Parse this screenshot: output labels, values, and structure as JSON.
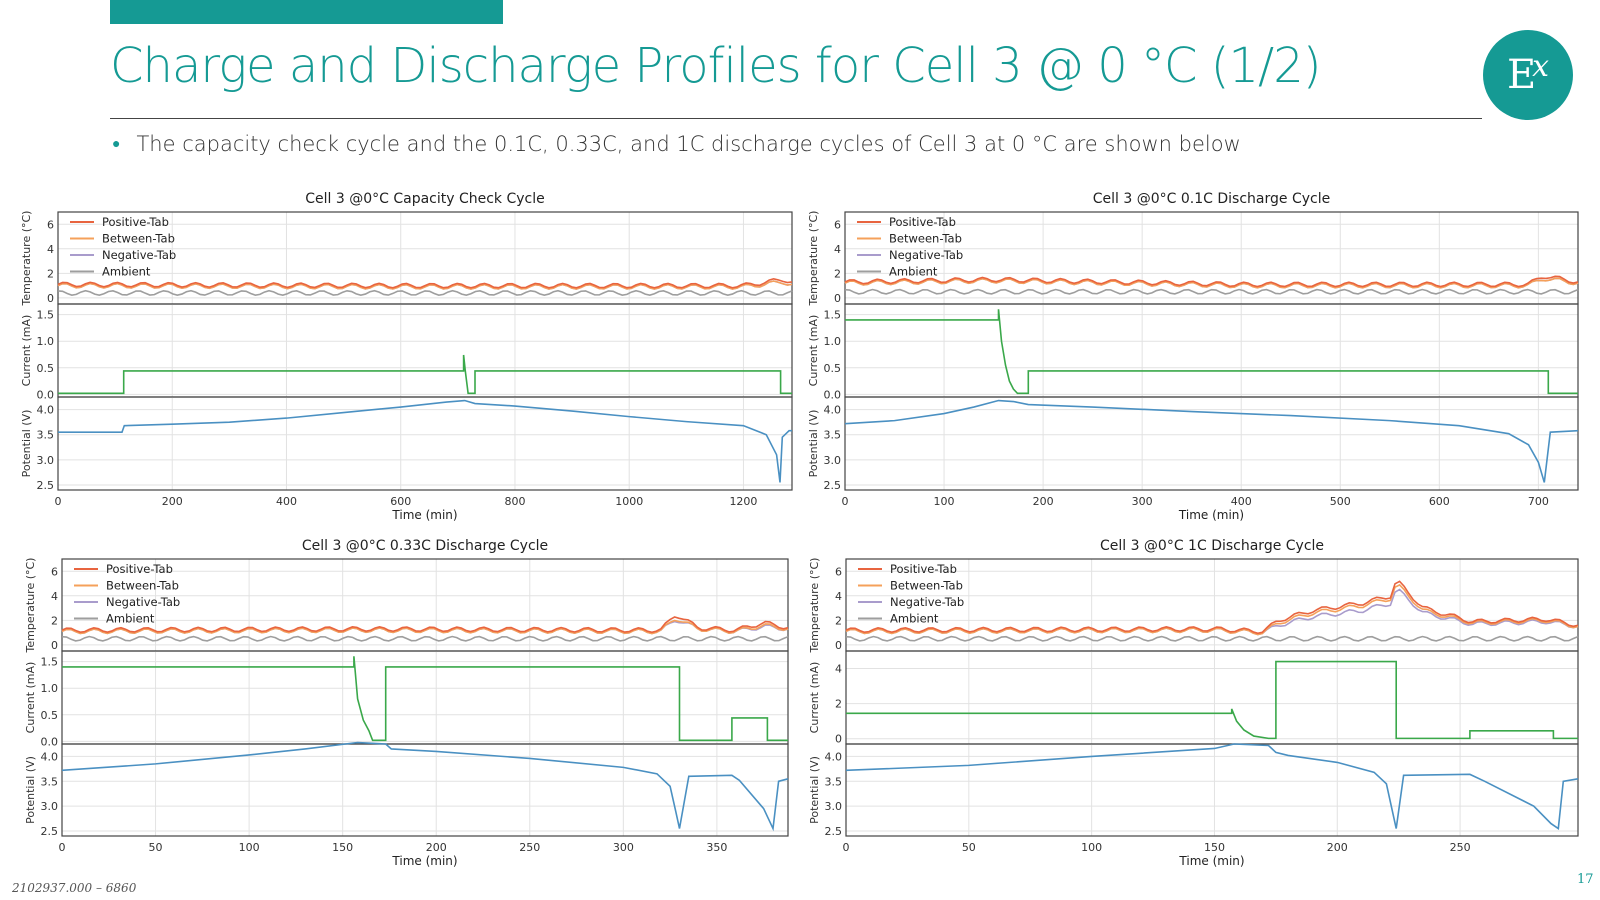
{
  "slide": {
    "title": "Charge and Discharge Profiles for Cell 3 @ 0 °C (1/2)",
    "bullet": "The capacity check cycle and the 0.1C, 0.33C, and 1C discharge cycles of Cell 3 at 0 °C are shown below",
    "logo_text": "E",
    "logo_sup": "x",
    "footer": "2102937.000 – 6860",
    "page_number": "17",
    "brand_color": "#159a94"
  },
  "legend_entries": [
    "Positive-Tab",
    "Between-Tab",
    "Negative-Tab",
    "Ambient"
  ],
  "series_colors": {
    "Positive-Tab": "#e8643f",
    "Between-Tab": "#f5a05a",
    "Negative-Tab": "#a99ccc",
    "Ambient": "#9e9e9e",
    "current": "#3aa84a",
    "potential": "#4a90c2"
  },
  "panel_labels": {
    "temperature": "Temperature (°C)",
    "current": "Current (mA)",
    "potential": "Potential (V)",
    "xlabel": "Time (min)"
  },
  "chart_data": [
    {
      "type": "line",
      "title": "Cell 3 @0°C Capacity Check Cycle",
      "xlabel": "Time (min)",
      "xlim": [
        0,
        1285
      ],
      "xticks": [
        0,
        200,
        400,
        600,
        800,
        1000,
        1200
      ],
      "temperature": {
        "ylabel": "Temperature (°C)",
        "ylim": [
          -0.5,
          7
        ],
        "yticks": [
          0,
          2,
          4,
          6
        ],
        "series": [
          {
            "name": "Positive-Tab",
            "x": [
              0,
              600,
              1200,
              1270,
              1285
            ],
            "y": [
              1.1,
              1.0,
              1.0,
              1.5,
              1.3
            ]
          },
          {
            "name": "Between-Tab",
            "x": [
              0,
              600,
              1200,
              1270,
              1285
            ],
            "y": [
              1.0,
              0.9,
              0.9,
              1.3,
              1.1
            ]
          },
          {
            "name": "Negative-Tab",
            "x": [
              0,
              600,
              1200,
              1270,
              1285
            ],
            "y": [
              1.0,
              0.9,
              0.9,
              1.3,
              1.1
            ]
          },
          {
            "name": "Ambient",
            "x": [
              0,
              1285
            ],
            "y": [
              0.4,
              0.4
            ]
          }
        ]
      },
      "current": {
        "ylabel": "Current (mA)",
        "ylim": [
          -0.05,
          1.7
        ],
        "yticks": [
          0.0,
          0.5,
          1.0,
          1.5
        ],
        "yticklabels": [
          "0.0",
          "0.5",
          "1.0",
          "1.5"
        ],
        "x": [
          0,
          115,
          115,
          710,
          710,
          713,
          718,
          730,
          730,
          1265,
          1265,
          1285
        ],
        "y": [
          0.02,
          0.02,
          0.44,
          0.44,
          0.74,
          0.44,
          0.02,
          0.02,
          0.44,
          0.44,
          0.02,
          0.02
        ]
      },
      "potential": {
        "ylabel": "Potential (V)",
        "ylim": [
          2.4,
          4.25
        ],
        "yticks": [
          2.5,
          3.0,
          3.5,
          4.0
        ],
        "yticklabels": [
          "2.5",
          "3.0",
          "3.5",
          "4.0"
        ],
        "x": [
          0,
          112,
          116,
          200,
          300,
          400,
          500,
          600,
          680,
          712,
          730,
          800,
          900,
          1000,
          1100,
          1200,
          1240,
          1258,
          1264,
          1268,
          1280,
          1285
        ],
        "y": [
          3.55,
          3.55,
          3.68,
          3.71,
          3.75,
          3.83,
          3.94,
          4.05,
          4.15,
          4.18,
          4.12,
          4.07,
          3.97,
          3.86,
          3.76,
          3.68,
          3.5,
          3.1,
          2.55,
          3.45,
          3.58,
          3.58
        ]
      }
    },
    {
      "type": "line",
      "title": "Cell 3 @0°C 0.1C Discharge Cycle",
      "xlabel": "Time (min)",
      "xlim": [
        0,
        740
      ],
      "xticks": [
        0,
        100,
        200,
        300,
        400,
        500,
        600,
        700
      ],
      "temperature": {
        "ylabel": "Temperature (°C)",
        "ylim": [
          -0.5,
          7
        ],
        "yticks": [
          0,
          2,
          4,
          6
        ],
        "series": [
          {
            "name": "Positive-Tab",
            "x": [
              0,
              150,
              400,
              690,
              705,
              740
            ],
            "y": [
              1.3,
              1.5,
              1.1,
              1.1,
              1.8,
              1.3
            ]
          },
          {
            "name": "Between-Tab",
            "x": [
              0,
              150,
              400,
              690,
              705,
              740
            ],
            "y": [
              1.2,
              1.4,
              1.0,
              1.0,
              1.6,
              1.2
            ]
          },
          {
            "name": "Negative-Tab",
            "x": [
              0,
              150,
              400,
              690,
              705,
              740
            ],
            "y": [
              1.2,
              1.4,
              1.0,
              1.0,
              1.6,
              1.2
            ]
          },
          {
            "name": "Ambient",
            "x": [
              0,
              740
            ],
            "y": [
              0.5,
              0.5
            ]
          }
        ]
      },
      "current": {
        "ylabel": "Current (mA)",
        "ylim": [
          -0.05,
          1.7
        ],
        "yticks": [
          0.0,
          0.5,
          1.0,
          1.5
        ],
        "yticklabels": [
          "0.0",
          "0.5",
          "1.0",
          "1.5"
        ],
        "x": [
          0,
          155,
          155,
          158,
          162,
          166,
          170,
          174,
          174,
          185,
          185,
          710,
          710,
          740
        ],
        "y": [
          1.4,
          1.4,
          1.6,
          1.0,
          0.55,
          0.25,
          0.1,
          0.02,
          0.02,
          0.02,
          0.44,
          0.44,
          0.02,
          0.02
        ]
      },
      "potential": {
        "ylabel": "Potential (V)",
        "ylim": [
          2.4,
          4.25
        ],
        "yticks": [
          2.5,
          3.0,
          3.5,
          4.0
        ],
        "yticklabels": [
          "2.5",
          "3.0",
          "3.5",
          "4.0"
        ],
        "x": [
          0,
          50,
          100,
          130,
          155,
          170,
          185,
          250,
          350,
          450,
          550,
          620,
          670,
          690,
          700,
          706,
          712,
          740
        ],
        "y": [
          3.72,
          3.78,
          3.92,
          4.05,
          4.18,
          4.16,
          4.1,
          4.05,
          3.96,
          3.88,
          3.78,
          3.68,
          3.52,
          3.3,
          2.95,
          2.55,
          3.55,
          3.58
        ]
      }
    },
    {
      "type": "line",
      "title": "Cell 3 @0°C 0.33C Discharge Cycle",
      "xlabel": "Time (min)",
      "xlim": [
        0,
        388
      ],
      "xticks": [
        0,
        50,
        100,
        150,
        200,
        250,
        300,
        350
      ],
      "temperature": {
        "ylabel": "Temperature (°C)",
        "ylim": [
          -0.5,
          7
        ],
        "yticks": [
          0,
          2,
          4,
          6
        ],
        "series": [
          {
            "name": "Positive-Tab",
            "x": [
              0,
              160,
              320,
              328,
              340,
              360,
              375,
              388
            ],
            "y": [
              1.2,
              1.3,
              1.2,
              2.5,
              1.4,
              1.2,
              1.8,
              1.4
            ]
          },
          {
            "name": "Between-Tab",
            "x": [
              0,
              160,
              320,
              328,
              340,
              360,
              375,
              388
            ],
            "y": [
              1.1,
              1.2,
              1.1,
              2.2,
              1.3,
              1.1,
              1.6,
              1.3
            ]
          },
          {
            "name": "Negative-Tab",
            "x": [
              0,
              160,
              320,
              328,
              340,
              360,
              375,
              388
            ],
            "y": [
              1.1,
              1.2,
              1.1,
              2.1,
              1.3,
              1.1,
              1.5,
              1.3
            ]
          },
          {
            "name": "Ambient",
            "x": [
              0,
              388
            ],
            "y": [
              0.5,
              0.5
            ]
          }
        ]
      },
      "current": {
        "ylabel": "Current (mA)",
        "ylim": [
          -0.05,
          1.7
        ],
        "yticks": [
          0.0,
          0.5,
          1.0,
          1.5
        ],
        "yticklabels": [
          "0.0",
          "0.5",
          "1.0",
          "1.5"
        ],
        "x": [
          0,
          156,
          156,
          158,
          161,
          164,
          166,
          166,
          173,
          173,
          330,
          330,
          358,
          358,
          377,
          377,
          388
        ],
        "y": [
          1.4,
          1.4,
          1.6,
          0.8,
          0.4,
          0.2,
          0.02,
          0.02,
          0.02,
          1.4,
          1.4,
          0.02,
          0.02,
          0.44,
          0.44,
          0.02,
          0.02
        ]
      },
      "potential": {
        "ylabel": "Potential (V)",
        "ylim": [
          2.4,
          4.25
        ],
        "yticks": [
          2.5,
          3.0,
          3.5,
          4.0
        ],
        "yticklabels": [
          "2.5",
          "3.0",
          "3.5",
          "4.0"
        ],
        "x": [
          0,
          50,
          100,
          130,
          158,
          173,
          176,
          200,
          250,
          300,
          318,
          325,
          328,
          330,
          335,
          358,
          362,
          375,
          380,
          383,
          388
        ],
        "y": [
          3.72,
          3.85,
          4.03,
          4.15,
          4.28,
          4.25,
          4.15,
          4.1,
          3.96,
          3.78,
          3.65,
          3.4,
          2.9,
          2.55,
          3.6,
          3.62,
          3.52,
          2.95,
          2.55,
          3.5,
          3.55
        ]
      }
    },
    {
      "type": "line",
      "title": "Cell 3 @0°C 1C Discharge Cycle",
      "xlabel": "Time (min)",
      "xlim": [
        0,
        298
      ],
      "xticks": [
        0,
        50,
        100,
        150,
        200,
        250
      ],
      "temperature": {
        "ylabel": "Temperature (°C)",
        "ylim": [
          -0.5,
          7
        ],
        "yticks": [
          0,
          2,
          4,
          6
        ],
        "series": [
          {
            "name": "Positive-Tab",
            "x": [
              0,
              150,
              170,
              176,
              190,
              210,
              222,
              224,
              235,
              255,
              285,
              298
            ],
            "y": [
              1.2,
              1.3,
              1.1,
              2.0,
              2.8,
              3.4,
              4.0,
              5.3,
              3.0,
              1.9,
              2.1,
              1.6
            ]
          },
          {
            "name": "Between-Tab",
            "x": [
              0,
              150,
              170,
              176,
              190,
              210,
              222,
              224,
              235,
              255,
              285,
              298
            ],
            "y": [
              1.1,
              1.2,
              1.0,
              1.8,
              2.6,
              3.2,
              3.8,
              5.0,
              2.8,
              1.8,
              2.0,
              1.5
            ]
          },
          {
            "name": "Negative-Tab",
            "x": [
              0,
              150,
              170,
              176,
              190,
              210,
              222,
              224,
              235,
              255,
              285,
              298
            ],
            "y": [
              1.1,
              1.2,
              1.0,
              1.6,
              2.3,
              2.8,
              3.4,
              4.6,
              2.6,
              1.7,
              1.9,
              1.5
            ]
          },
          {
            "name": "Ambient",
            "x": [
              0,
              298
            ],
            "y": [
              0.5,
              0.5
            ]
          }
        ]
      },
      "current": {
        "ylabel": "Current (mA)",
        "ylim": [
          -0.3,
          5.0
        ],
        "yticks": [
          0,
          2,
          4
        ],
        "yticklabels": [
          "0",
          "2",
          "4"
        ],
        "x": [
          0,
          157,
          157,
          159,
          162,
          166,
          172,
          172,
          175,
          175,
          224,
          224,
          254,
          254,
          288,
          288,
          298
        ],
        "y": [
          1.45,
          1.45,
          1.7,
          1.0,
          0.5,
          0.15,
          0.02,
          0.02,
          0.02,
          4.4,
          4.4,
          0.02,
          0.02,
          0.45,
          0.45,
          0.02,
          0.02
        ]
      },
      "potential": {
        "ylabel": "Potential (V)",
        "ylim": [
          2.4,
          4.25
        ],
        "yticks": [
          2.5,
          3.0,
          3.5,
          4.0
        ],
        "yticklabels": [
          "2.5",
          "3.0",
          "3.5",
          "4.0"
        ],
        "x": [
          0,
          50,
          100,
          150,
          158,
          172,
          175,
          180,
          200,
          215,
          220,
          222,
          224,
          227,
          254,
          260,
          280,
          287,
          290,
          292,
          298
        ],
        "y": [
          3.72,
          3.82,
          4.0,
          4.16,
          4.25,
          4.22,
          4.08,
          4.02,
          3.88,
          3.68,
          3.45,
          3.0,
          2.55,
          3.62,
          3.64,
          3.5,
          3.0,
          2.65,
          2.55,
          3.5,
          3.55
        ]
      }
    }
  ]
}
